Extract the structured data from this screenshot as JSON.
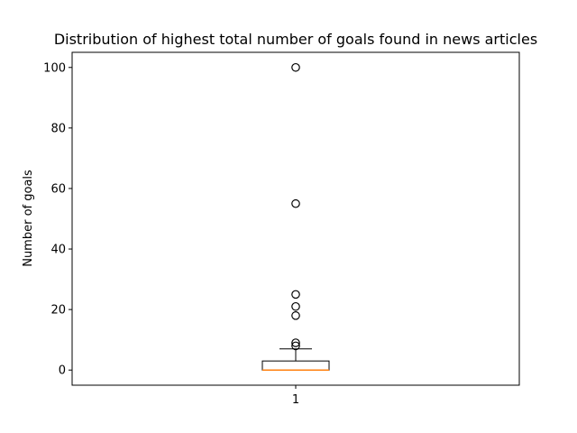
{
  "chart_data": {
    "type": "box",
    "title": "Distribution of highest total number of goals found in news articles",
    "xlabel": "",
    "ylabel": "Number of goals",
    "categories": [
      "1"
    ],
    "ylim": [
      -5,
      105
    ],
    "yticks": [
      0,
      20,
      40,
      60,
      80,
      100
    ],
    "grid": false,
    "boxes": [
      {
        "category": "1",
        "whisker_low": 0,
        "q1": 0,
        "median": 0,
        "q3": 3,
        "whisker_high": 7,
        "outliers": [
          8,
          9,
          18,
          21,
          25,
          55,
          100
        ]
      }
    ],
    "colors": {
      "box": "#000000",
      "median": "#ff7f0e",
      "outlier": "#000000"
    }
  }
}
